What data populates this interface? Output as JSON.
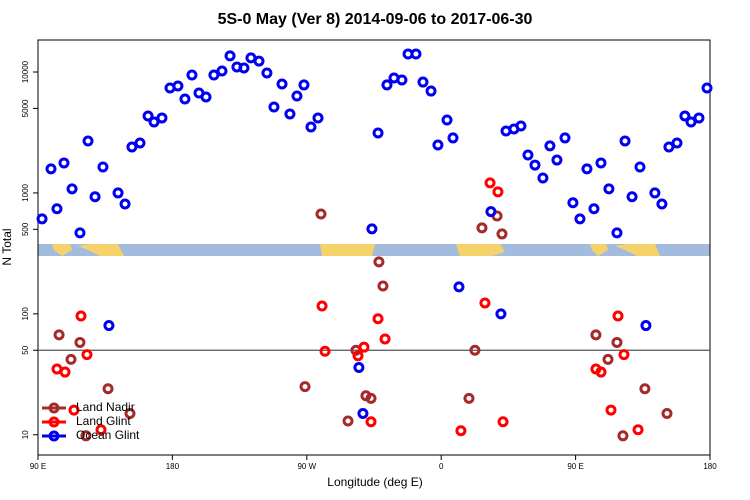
{
  "chart_data": {
    "type": "scatter",
    "title": "5S-0 May (Ver 8)   2014-09-06 to 2017-06-30",
    "x_label": "Longitude (deg E)",
    "y_label": "N Total",
    "xlim": [
      90,
      540
    ],
    "xticks": [
      {
        "value": 90,
        "label": "90 E"
      },
      180,
      {
        "value": 270,
        "label": "90 W"
      },
      {
        "value": 360,
        "label": "0"
      },
      {
        "value": 450,
        "label": "90 E"
      },
      {
        "value": 540,
        "label": "180"
      }
    ],
    "ylim": [
      6.8,
      18400
    ],
    "log_y": true,
    "yticks": [
      10,
      50,
      100,
      500,
      1000,
      5000,
      10000
    ],
    "reference_line": 50,
    "legend": "bottomleft",
    "series": [
      {
        "name": "Land Nadir",
        "color": "#a52a2a",
        "x": [
          104.1,
          112.1,
          118.1,
          122.1,
          136.9,
          151.6,
          268.8,
          279.5,
          297.6,
          302.9,
          309.6,
          313.0,
          318.3,
          321.0,
          378.6,
          382.6,
          387.3,
          397.4,
          400.7,
          463.6,
          471.7,
          477.7,
          481.7,
          496.4,
          511.2
        ],
        "values": [
          67,
          42,
          58,
          9.8,
          24,
          15,
          25,
          670,
          13,
          50,
          21,
          20,
          269,
          170,
          20,
          50,
          514,
          645,
          458,
          67,
          42,
          58,
          9.8,
          24,
          15
        ]
      },
      {
        "name": "Land Glint",
        "color": "#ff0000",
        "x": [
          102.7,
          108.1,
          114.1,
          118.8,
          122.8,
          132.2,
          280.2,
          282.2,
          304.3,
          308.3,
          313.0,
          317.7,
          322.4,
          373.2,
          389.3,
          392.7,
          398.0,
          401.4,
          463.6,
          467.0,
          473.7,
          478.4,
          482.4,
          491.8
        ],
        "values": [
          35,
          33,
          16,
          96,
          46,
          11,
          116,
          49,
          45,
          53,
          12.8,
          91,
          62,
          10.8,
          123,
          1210,
          1020,
          12.8,
          35,
          33,
          16,
          96,
          46,
          11
        ]
      },
      {
        "name": "Ocean Glint",
        "color": "#0000ee",
        "x": [
          92.7,
          98.7,
          102.7,
          107.4,
          112.8,
          118.1,
          123.5,
          128.2,
          133.5,
          137.5,
          143.6,
          148.3,
          152.9,
          158.3,
          163.7,
          167.7,
          173.0,
          178.4,
          183.7,
          188.4,
          193.1,
          197.8,
          202.5,
          207.8,
          213.2,
          218.6,
          223.2,
          227.9,
          232.6,
          238.0,
          243.3,
          248.0,
          253.4,
          258.7,
          263.4,
          268.1,
          272.8,
          277.5,
          304.9,
          307.6,
          313.6,
          317.7,
          323.7,
          328.4,
          333.7,
          337.8,
          343.1,
          347.8,
          353.2,
          357.8,
          363.9,
          367.9,
          371.9,
          393.3,
          400.0,
          403.4,
          408.7,
          413.4,
          418.1,
          422.8,
          428.1,
          432.8,
          437.5,
          442.9,
          448.2,
          452.9,
          457.6,
          462.3,
          467.0,
          472.3,
          477.7,
          483.1,
          487.8,
          493.1,
          497.1,
          503.1,
          507.8,
          512.5,
          517.9,
          523.2,
          527.3,
          532.6,
          538.0
        ],
        "values": [
          610,
          1580,
          740,
          1770,
          1080,
          467,
          2690,
          930,
          1640,
          80,
          1000,
          810,
          2400,
          2590,
          4330,
          3860,
          4170,
          7380,
          7660,
          5980,
          9440,
          6700,
          6210,
          9440,
          10200,
          13600,
          11000,
          10800,
          13100,
          12300,
          9820,
          5140,
          7960,
          4500,
          6330,
          7820,
          3510,
          4170,
          36,
          15,
          504,
          3130,
          7820,
          8920,
          8590,
          14100,
          14100,
          8260,
          6960,
          2490,
          4010,
          2850,
          167,
          700,
          100,
          3250,
          3380,
          3580,
          2060,
          1700,
          1330,
          2450,
          1870,
          2850,
          830,
          610,
          1580,
          740,
          1770,
          1080,
          467,
          2690,
          930,
          1640,
          80,
          1000,
          810,
          2400,
          2590,
          4330,
          3860,
          4170,
          7380
        ]
      }
    ]
  }
}
